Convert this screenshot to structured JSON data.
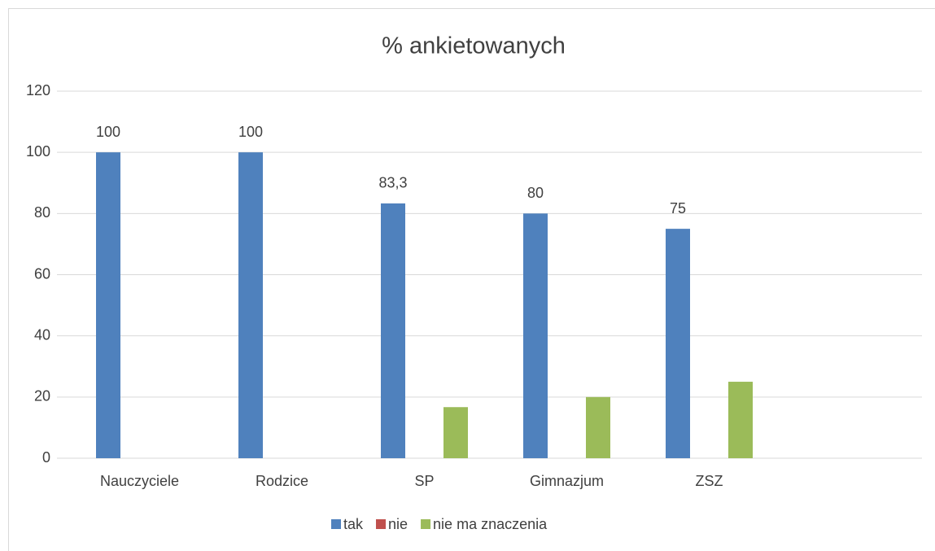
{
  "chart_data": {
    "type": "bar",
    "title": "% ankietowanych",
    "categories": [
      "Nauczyciele",
      "Rodzice",
      "SP",
      "Gimnazjum",
      "ZSZ",
      null
    ],
    "series": [
      {
        "name": "tak",
        "color": "#4f81bd",
        "values": [
          100,
          100,
          83.3,
          80,
          75,
          null
        ],
        "value_labels": [
          "100",
          "100",
          "83,3",
          "80",
          "75",
          null
        ]
      },
      {
        "name": "nie",
        "color": "#c0504d",
        "values": [
          0,
          0,
          0,
          0,
          0,
          null
        ]
      },
      {
        "name": "nie ma znaczenia",
        "color": "#9bbb59",
        "values": [
          0,
          0,
          16.7,
          20,
          25,
          null
        ]
      }
    ],
    "ylim": [
      0,
      120
    ],
    "yticks": [
      0,
      20,
      40,
      60,
      80,
      100,
      120
    ],
    "grid": true,
    "legend": "bottom"
  }
}
